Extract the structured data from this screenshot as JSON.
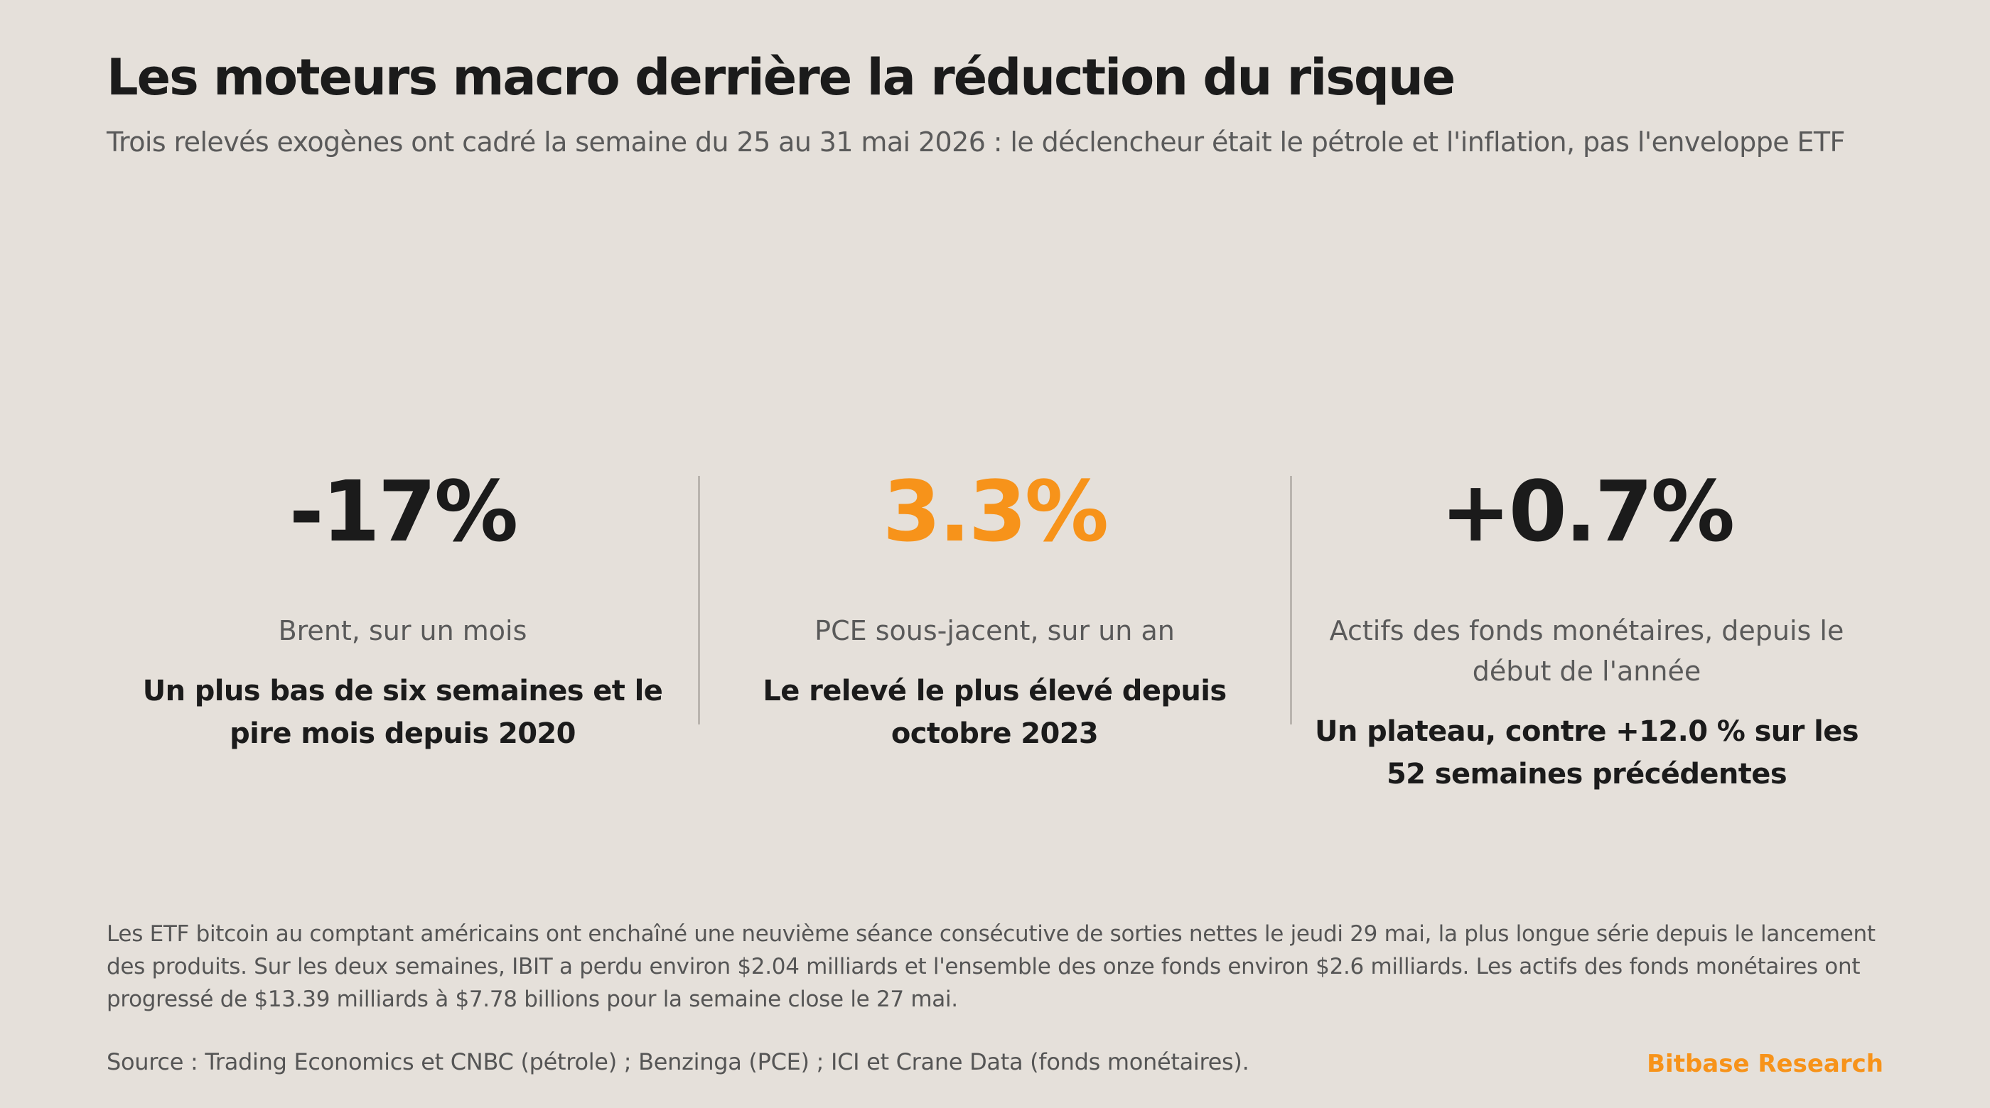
{
  "header": {
    "title": "Les moteurs macro derrière la réduction du risque",
    "subtitle": "Trois relevés exogènes ont cadré la semaine du 25 au 31 mai 2026 : le déclencheur était le pétrole et l'inflation, pas l'enveloppe ETF"
  },
  "stats": [
    {
      "value": "-17%",
      "label": "Brent, sur un mois",
      "note": "Un plus bas de six semaines et le pire mois depuis 2020",
      "color": "#1b1b1b"
    },
    {
      "value": "3.3%",
      "label": "PCE sous-jacent, sur un an",
      "note": "Le relevé le plus élevé depuis octobre 2023",
      "color": "#f7931a"
    },
    {
      "value": "+0.7%",
      "label": "Actifs des fonds monétaires, depuis le début de l'année",
      "note": "Un plateau, contre +12.0 % sur les 52 semaines précédentes",
      "color": "#1b1b1b"
    }
  ],
  "body": "Les ETF bitcoin au comptant américains ont enchaîné une neuvième séance consécutive de sorties nettes le jeudi 29 mai, la plus longue série depuis le lancement des produits. Sur les deux semaines, IBIT a perdu environ $2.04 milliards et l'ensemble des onze fonds environ $2.6 milliards. Les actifs des fonds monétaires ont progressé de $13.39 milliards à $7.78 billions pour la semaine close le 27 mai.",
  "footer": {
    "source": "Source : Trading Economics et CNBC (pétrole) ; Benzinga (PCE) ; ICI et Crane Data (fonds monétaires).",
    "brand": "Bitbase Research",
    "brand_color": "#f7931a"
  }
}
